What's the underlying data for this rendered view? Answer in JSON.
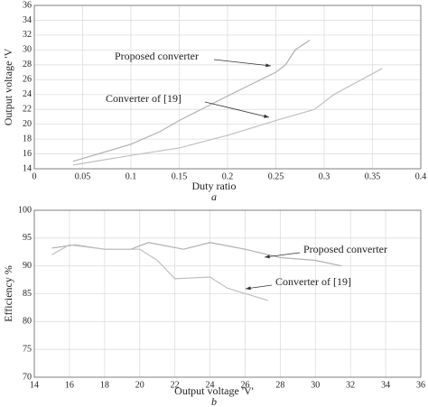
{
  "chart_data": [
    {
      "type": "line",
      "xlabel": "Duty ratio",
      "ylabel": "Output voltage 'V",
      "caption": "a",
      "xlim": [
        0,
        0.4
      ],
      "xticks": [
        0,
        0.05,
        0.1,
        0.15,
        0.2,
        0.25,
        0.3,
        0.35,
        0.4
      ],
      "ylim": [
        14,
        36
      ],
      "yticks": [
        14,
        16,
        18,
        20,
        22,
        24,
        26,
        28,
        30,
        32,
        34,
        36
      ],
      "grid": true,
      "series": [
        {
          "name": "Proposed converter",
          "color": "#b0b0b0",
          "x": [
            0.04,
            0.1,
            0.13,
            0.15,
            0.2,
            0.25,
            0.26,
            0.27,
            0.285
          ],
          "values": [
            15,
            17.3,
            19,
            20.5,
            23.8,
            27,
            28,
            30,
            31.3
          ]
        },
        {
          "name": "Converter of [19]",
          "color": "#c0c0c0",
          "x": [
            0.04,
            0.1,
            0.15,
            0.2,
            0.25,
            0.29,
            0.31,
            0.36
          ],
          "values": [
            14.5,
            15.8,
            16.8,
            18.5,
            20.5,
            22,
            24,
            27.5
          ]
        }
      ]
    },
    {
      "type": "line",
      "xlabel": "Output voltage 'V'",
      "ylabel": "Efficiency %",
      "caption": "b",
      "xlim": [
        14,
        36
      ],
      "xticks": [
        14,
        16,
        18,
        20,
        22,
        24,
        26,
        28,
        30,
        32,
        34,
        36
      ],
      "ylim": [
        70,
        100
      ],
      "yticks": [
        70,
        75,
        80,
        85,
        90,
        95,
        100
      ],
      "grid": true,
      "series": [
        {
          "name": "Proposed converter",
          "color": "#b0b0b0",
          "x": [
            15,
            16.3,
            18,
            19.5,
            20.5,
            22.5,
            24,
            26,
            28,
            30,
            31.5
          ],
          "values": [
            93.2,
            93.8,
            93,
            93,
            94.2,
            93,
            94.2,
            93,
            91.5,
            91,
            90
          ]
        },
        {
          "name": "Converter of [19]",
          "color": "#c0c0c0",
          "x": [
            15,
            16,
            18,
            20,
            21,
            22,
            24,
            25,
            27.3
          ],
          "values": [
            92,
            93.8,
            93,
            93,
            91,
            87.7,
            88,
            86,
            83.8
          ]
        }
      ]
    }
  ]
}
